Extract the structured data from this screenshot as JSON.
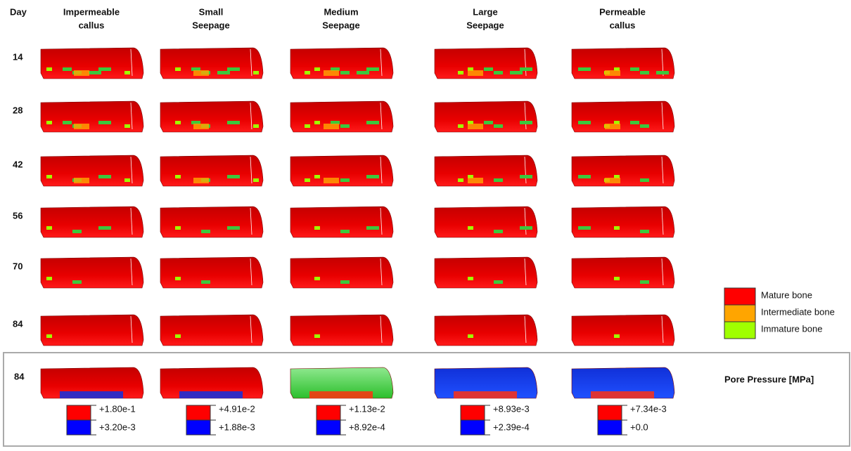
{
  "header": {
    "day_label": "Day",
    "columns": [
      [
        "Impermeable",
        "callus"
      ],
      [
        "Small",
        "Seepage"
      ],
      [
        "Medium",
        "Seepage"
      ],
      [
        "Large",
        "Seepage"
      ],
      [
        "Permeable",
        "callus"
      ]
    ]
  },
  "rows": [
    "14",
    "28",
    "42",
    "56",
    "70",
    "84"
  ],
  "legend": [
    "Mature bone",
    "Intermediate bone",
    "Immature bone"
  ],
  "pressure": {
    "day": "84",
    "title": "Pore Pressure [MPa]",
    "scales": [
      [
        "+1.80e-1",
        "+3.20e-3"
      ],
      [
        "+4.91e-2",
        "+1.88e-3"
      ],
      [
        "+1.13e-2",
        "+8.92e-4"
      ],
      [
        "+8.93e-3",
        "+2.39e-4"
      ],
      [
        "+7.34e-3",
        "+0.0"
      ]
    ]
  }
}
